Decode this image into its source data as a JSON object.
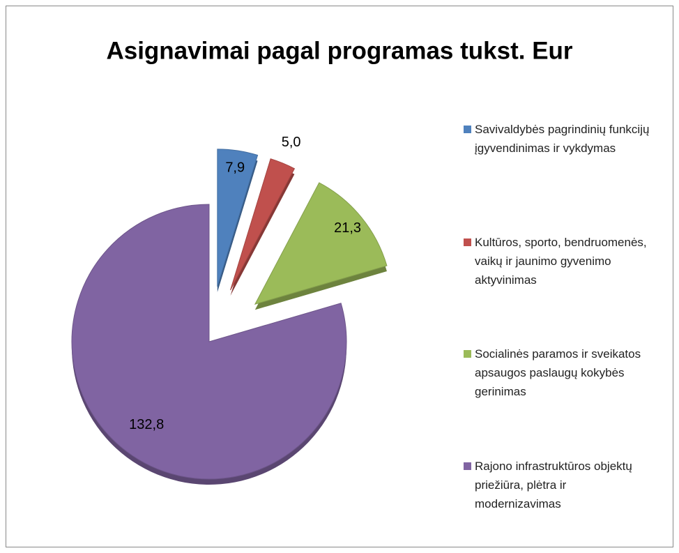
{
  "chart_data": {
    "type": "pie",
    "title": "Asignavimai pagal programas tukst. Eur",
    "categories": [
      "Savivaldybės pagrindinių funkcijų įgyvendinimas ir vykdymas",
      "Kultūros, sporto, bendruomenės, vaikų ir jaunimo gyvenimo aktyvinimas",
      "Socialinės paramos ir sveikatos apsaugos paslaugų kokybės gerinimas",
      "Rajono infrastruktūros objektų priežiūra, plėtra ir modernizavimas"
    ],
    "values": [
      7.9,
      5.0,
      21.3,
      132.8
    ],
    "value_labels": [
      "7,9",
      "5,0",
      "21,3",
      "132,8"
    ],
    "colors": [
      "#4f81bd",
      "#c0504d",
      "#9bbb59",
      "#8064a2"
    ],
    "legend": "right"
  }
}
